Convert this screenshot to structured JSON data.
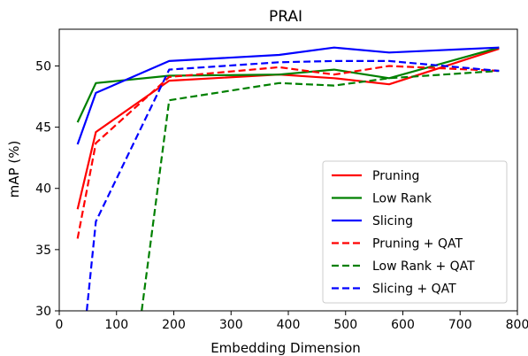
{
  "chart_data": {
    "type": "line",
    "title": "PRAI",
    "xlabel": "Embedding Dimension",
    "ylabel": "mAP (%)",
    "xlim": [
      0,
      800
    ],
    "ylim": [
      30,
      53
    ],
    "xticks": [
      0,
      100,
      200,
      300,
      400,
      500,
      600,
      700,
      800
    ],
    "yticks": [
      30,
      35,
      40,
      45,
      50
    ],
    "legend_position": "lower-right",
    "grid": false,
    "series": [
      {
        "name": "Pruning",
        "color": "#ff0000",
        "dash": "solid",
        "x": [
          32,
          64,
          192,
          384,
          480,
          576,
          768
        ],
        "y": [
          38.3,
          44.6,
          48.8,
          49.3,
          49.0,
          48.5,
          51.4
        ]
      },
      {
        "name": "Low Rank",
        "color": "#008000",
        "dash": "solid",
        "x": [
          32,
          64,
          192,
          384,
          480,
          576,
          768
        ],
        "y": [
          45.4,
          48.6,
          49.2,
          49.3,
          49.7,
          49.0,
          51.5
        ]
      },
      {
        "name": "Slicing",
        "color": "#0000ff",
        "dash": "solid",
        "x": [
          32,
          64,
          192,
          384,
          480,
          576,
          768
        ],
        "y": [
          43.6,
          47.8,
          50.4,
          50.9,
          51.5,
          51.1,
          51.5
        ]
      },
      {
        "name": "Pruning + QAT",
        "color": "#ff0000",
        "dash": "dashed",
        "x": [
          32,
          64,
          192,
          384,
          480,
          576,
          768
        ],
        "y": [
          35.9,
          43.7,
          49.1,
          49.9,
          49.3,
          50.0,
          49.6
        ]
      },
      {
        "name": "Low Rank + QAT",
        "color": "#008000",
        "dash": "dashed",
        "x": [
          144,
          192,
          384,
          480,
          576,
          768
        ],
        "y": [
          30.0,
          47.2,
          48.6,
          48.4,
          49.0,
          49.6
        ]
      },
      {
        "name": "Slicing + QAT",
        "color": "#0000ff",
        "dash": "dashed",
        "x": [
          48,
          64,
          192,
          384,
          480,
          576,
          768
        ],
        "y": [
          30.0,
          37.3,
          49.7,
          50.3,
          50.4,
          50.4,
          49.6
        ]
      }
    ]
  }
}
